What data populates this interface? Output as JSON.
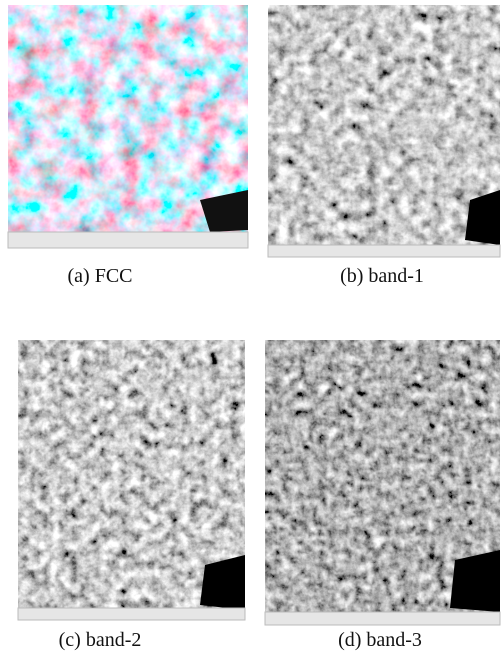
{
  "panels": [
    {
      "caption": "(a) FCC"
    },
    {
      "caption": "(b) band-1"
    },
    {
      "caption": "(c) band-2"
    },
    {
      "caption": "(d) band-3"
    }
  ]
}
